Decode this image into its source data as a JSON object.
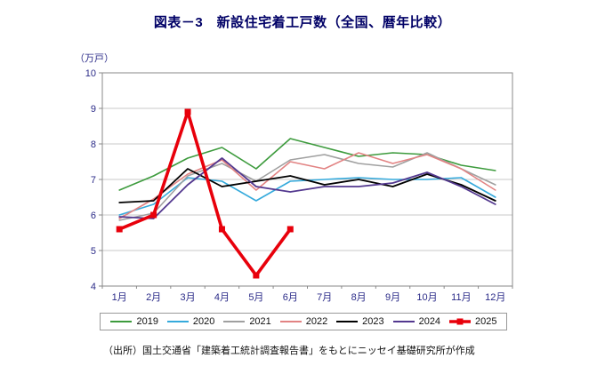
{
  "title": "図表－3　新設住宅着工戸数（全国、暦年比較）",
  "source": "（出所）国土交通省「建築着工統計調査報告書」をもとにニッセイ基礎研究所が作成",
  "chart_data": {
    "type": "line",
    "title": "図表－3　新設住宅着工戸数（全国、暦年比較）",
    "xlabel": "",
    "ylabel": "（万戸）",
    "ylim": [
      4,
      10
    ],
    "ytick_step": 1,
    "grid": true,
    "legend_position": "bottom",
    "categories": [
      "1月",
      "2月",
      "3月",
      "4月",
      "5月",
      "6月",
      "7月",
      "8月",
      "9月",
      "10月",
      "11月",
      "12月"
    ],
    "series": [
      {
        "name": "2019",
        "color": "#3d9b3d",
        "width": 1.6,
        "marker": "none",
        "values": [
          6.7,
          7.1,
          7.6,
          7.9,
          7.3,
          8.15,
          7.9,
          7.65,
          7.75,
          7.7,
          7.4,
          7.25
        ]
      },
      {
        "name": "2020",
        "color": "#35aadc",
        "width": 1.6,
        "marker": "none",
        "values": [
          6.0,
          6.3,
          7.05,
          6.95,
          6.4,
          6.95,
          7.0,
          7.05,
          7.0,
          7.0,
          7.05,
          6.5
        ]
      },
      {
        "name": "2021",
        "color": "#a0a0a0",
        "width": 1.6,
        "marker": "none",
        "values": [
          5.85,
          6.05,
          7.1,
          7.45,
          6.95,
          7.55,
          7.7,
          7.45,
          7.35,
          7.75,
          7.3,
          6.85
        ]
      },
      {
        "name": "2022",
        "color": "#e28383",
        "width": 1.6,
        "marker": "none",
        "values": [
          5.9,
          6.45,
          7.15,
          7.55,
          6.7,
          7.5,
          7.3,
          7.75,
          7.45,
          7.7,
          7.3,
          6.7
        ]
      },
      {
        "name": "2023",
        "color": "#000000",
        "width": 1.8,
        "marker": "none",
        "values": [
          6.35,
          6.4,
          7.3,
          6.8,
          6.95,
          7.1,
          6.85,
          7.0,
          6.8,
          7.15,
          6.85,
          6.4
        ]
      },
      {
        "name": "2024",
        "color": "#53388f",
        "width": 1.8,
        "marker": "none",
        "values": [
          5.95,
          5.9,
          6.85,
          7.6,
          6.8,
          6.65,
          6.8,
          6.8,
          6.9,
          7.2,
          6.8,
          6.3
        ]
      },
      {
        "name": "2025",
        "color": "#e8000b",
        "width": 3.6,
        "marker": "square",
        "values": [
          5.6,
          6.0,
          8.9,
          5.6,
          4.3,
          5.6,
          null,
          null,
          null,
          null,
          null,
          null
        ]
      }
    ],
    "style": {
      "axis_text_color": "#2b2b88",
      "grid_color": "#c9c9c9",
      "plot_border_color": "#8a8a8a",
      "title_color": "#000066"
    }
  }
}
